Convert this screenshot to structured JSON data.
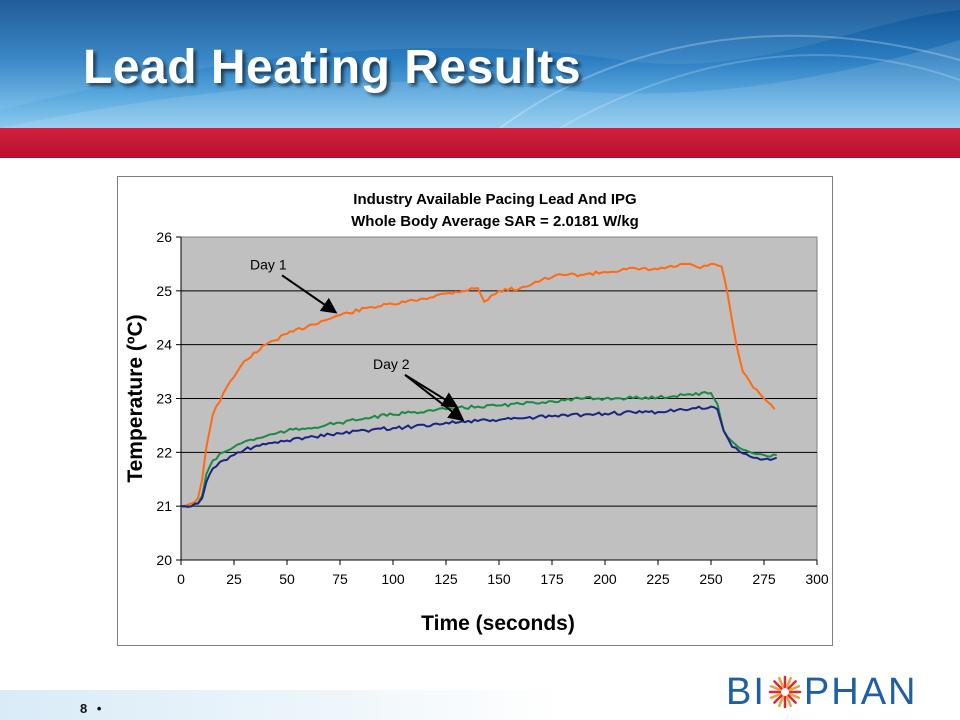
{
  "slide": {
    "title": "Lead Heating Results",
    "page_number": "8",
    "page_bullet": "•",
    "logo_text": "BIOPHAN",
    "colors": {
      "banner": "#2a7cc0",
      "red_bar": "#c41a36",
      "logo": "#1f5fa6"
    }
  },
  "chart_data": {
    "type": "line",
    "title": "Industry Available Pacing Lead And IPG",
    "subtitle": "Whole Body Average SAR = 2.0181 W/kg",
    "xlabel": "Time (seconds)",
    "ylabel": "Temperature (ºC)",
    "xlim": [
      0,
      300
    ],
    "ylim": [
      20,
      26
    ],
    "xticks": [
      0,
      25,
      50,
      75,
      100,
      125,
      150,
      175,
      200,
      225,
      250,
      275,
      300
    ],
    "yticks": [
      20,
      21,
      22,
      23,
      24,
      25,
      26
    ],
    "grid": "horizontal",
    "plot_background": "#c0c0c0",
    "series": [
      {
        "color": "#ff6a13",
        "x": [
          0,
          5,
          8,
          10,
          12,
          15,
          20,
          25,
          30,
          40,
          50,
          60,
          75,
          90,
          100,
          110,
          125,
          140,
          143,
          150,
          160,
          170,
          175,
          180,
          190,
          200,
          210,
          225,
          240,
          245,
          250,
          255,
          258,
          262,
          265,
          270,
          275,
          280
        ],
        "y": [
          21.0,
          21.05,
          21.15,
          21.5,
          22.1,
          22.7,
          23.1,
          23.4,
          23.7,
          24.0,
          24.2,
          24.35,
          24.55,
          24.7,
          24.75,
          24.82,
          24.95,
          25.05,
          24.8,
          25.0,
          25.05,
          25.2,
          25.25,
          25.3,
          25.3,
          25.35,
          25.4,
          25.4,
          25.5,
          25.42,
          25.5,
          25.45,
          24.9,
          24.0,
          23.5,
          23.2,
          23.0,
          22.8
        ]
      },
      {
        "color": "#1a8a46",
        "x": [
          0,
          5,
          8,
          10,
          12,
          15,
          20,
          25,
          30,
          40,
          50,
          60,
          75,
          90,
          100,
          110,
          125,
          140,
          150,
          160,
          175,
          190,
          200,
          225,
          240,
          250,
          253,
          256,
          260,
          265,
          270,
          275,
          278,
          281
        ],
        "y": [
          21.0,
          21.0,
          21.05,
          21.2,
          21.6,
          21.85,
          22.0,
          22.1,
          22.2,
          22.3,
          22.4,
          22.45,
          22.55,
          22.65,
          22.7,
          22.75,
          22.8,
          22.85,
          22.87,
          22.9,
          22.95,
          23.0,
          23.0,
          23.02,
          23.08,
          23.1,
          22.9,
          22.4,
          22.2,
          22.05,
          21.98,
          21.95,
          21.92,
          21.95
        ]
      },
      {
        "color": "#1a2580",
        "x": [
          0,
          5,
          8,
          10,
          12,
          15,
          20,
          25,
          30,
          40,
          50,
          60,
          75,
          90,
          100,
          110,
          125,
          140,
          150,
          160,
          175,
          190,
          200,
          225,
          240,
          250,
          253,
          256,
          260,
          265,
          270,
          275,
          278,
          281
        ],
        "y": [
          21.0,
          21.0,
          21.05,
          21.15,
          21.45,
          21.7,
          21.85,
          21.95,
          22.05,
          22.15,
          22.22,
          22.28,
          22.35,
          22.42,
          22.45,
          22.48,
          22.55,
          22.58,
          22.6,
          22.63,
          22.67,
          22.7,
          22.72,
          22.75,
          22.8,
          22.85,
          22.8,
          22.4,
          22.1,
          21.98,
          21.9,
          21.87,
          21.86,
          21.9
        ]
      }
    ],
    "annotations": [
      {
        "text": "Day 1",
        "x": 42,
        "y": 25.4,
        "arrows_to": [
          [
            73,
            24.6
          ]
        ]
      },
      {
        "text": "Day 2",
        "x": 100,
        "y": 23.55,
        "arrows_to": [
          [
            130,
            22.85
          ],
          [
            133,
            22.6
          ]
        ]
      }
    ]
  }
}
